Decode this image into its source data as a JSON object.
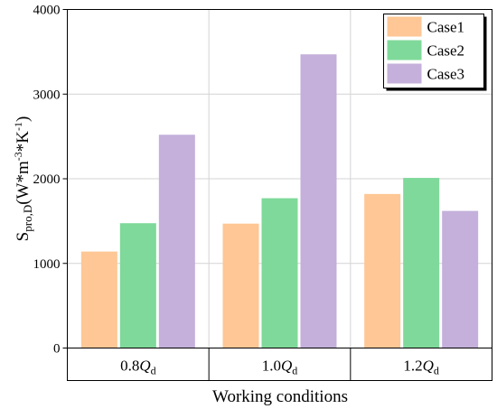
{
  "chart_data": {
    "type": "bar",
    "categories": [
      "0.8Q_d",
      "1.0Q_d",
      "1.2Q_d"
    ],
    "category_labels": [
      {
        "prefix": "0.8",
        "var": "Q",
        "sub": "d"
      },
      {
        "prefix": "1.0",
        "var": "Q",
        "sub": "d"
      },
      {
        "prefix": "1.2",
        "var": "Q",
        "sub": "d"
      }
    ],
    "series": [
      {
        "name": "Case1",
        "color": "#FEC795",
        "values": [
          1140,
          1470,
          1820
        ]
      },
      {
        "name": "Case2",
        "color": "#7FD99A",
        "values": [
          1475,
          1770,
          2010
        ]
      },
      {
        "name": "Case3",
        "color": "#C4B0DA",
        "values": [
          2520,
          3470,
          1620
        ]
      }
    ],
    "xlabel": "Working conditions",
    "ylabel": {
      "base": "S",
      "sub": "pro,D",
      "unit_open": "(W*m",
      "exp1": "-3",
      "mid": "*K",
      "exp2": "-1",
      "unit_close": ")"
    },
    "ylim": [
      0,
      4000
    ],
    "yticks": [
      0,
      1000,
      2000,
      3000,
      4000
    ],
    "grid": true,
    "legend_position": "top-right"
  }
}
